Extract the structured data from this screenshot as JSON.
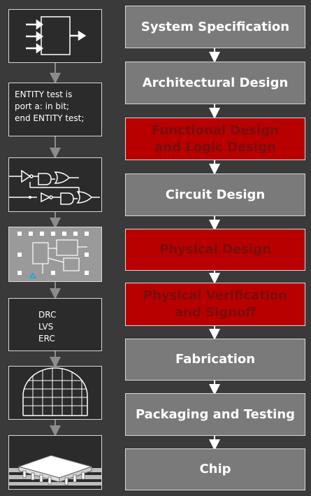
{
  "flow_steps": [
    {
      "label": "System Specification",
      "highlight": false
    },
    {
      "label": "Architectural Design",
      "highlight": false
    },
    {
      "label": "Functional Design\nand Logic Design",
      "highlight": true
    },
    {
      "label": "Circuit Design",
      "highlight": false
    },
    {
      "label": "Physical Design",
      "highlight": true
    },
    {
      "label": "Physical Verification\nand Signoff",
      "highlight": true
    },
    {
      "label": "Fabrication",
      "highlight": false
    },
    {
      "label": "Packaging and Testing",
      "highlight": false
    },
    {
      "label": "Chip",
      "highlight": false
    }
  ],
  "side_tiles": {
    "system_block_icon": "block-diagram-icon",
    "hdl_code": "ENTITY test is\nport a: in bit;\nend ENTITY test;",
    "logic_schematic_icon": "gate-schematic-icon",
    "layout_icon": "placement-layout-icon",
    "signoff_checks": "DRC\nLVS\nERC",
    "wafer_icon": "wafer-icon",
    "chip_package_icon": "ic-package-icon"
  },
  "colors": {
    "background": "#3a3a3a",
    "step_gray": "#7a7a7a",
    "step_red": "#b80000",
    "connector": "#8c8c8c"
  }
}
